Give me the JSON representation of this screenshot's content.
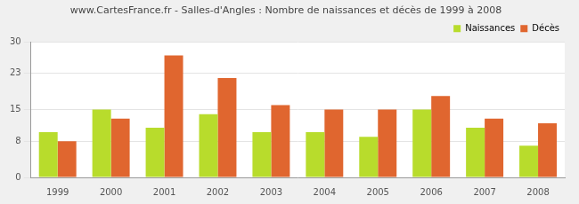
{
  "chart_data": {
    "type": "bar",
    "title": "www.CartesFrance.fr - Salles-d'Angles : Nombre de naissances et décès de 1999 à 2008",
    "categories": [
      "1999",
      "2000",
      "2001",
      "2002",
      "2003",
      "2004",
      "2005",
      "2006",
      "2007",
      "2008"
    ],
    "series": [
      {
        "name": "Naissances",
        "color": "#b8dc2c",
        "values": [
          10,
          15,
          11,
          14,
          10,
          10,
          9,
          15,
          11,
          7
        ]
      },
      {
        "name": "Décès",
        "color": "#e0662f",
        "values": [
          8,
          13,
          27,
          22,
          16,
          15,
          15,
          18,
          13,
          12
        ]
      }
    ],
    "ylim": [
      0,
      30
    ],
    "yticks": [
      0,
      8,
      15,
      23,
      30
    ],
    "grid": true,
    "legend": "top-right"
  }
}
